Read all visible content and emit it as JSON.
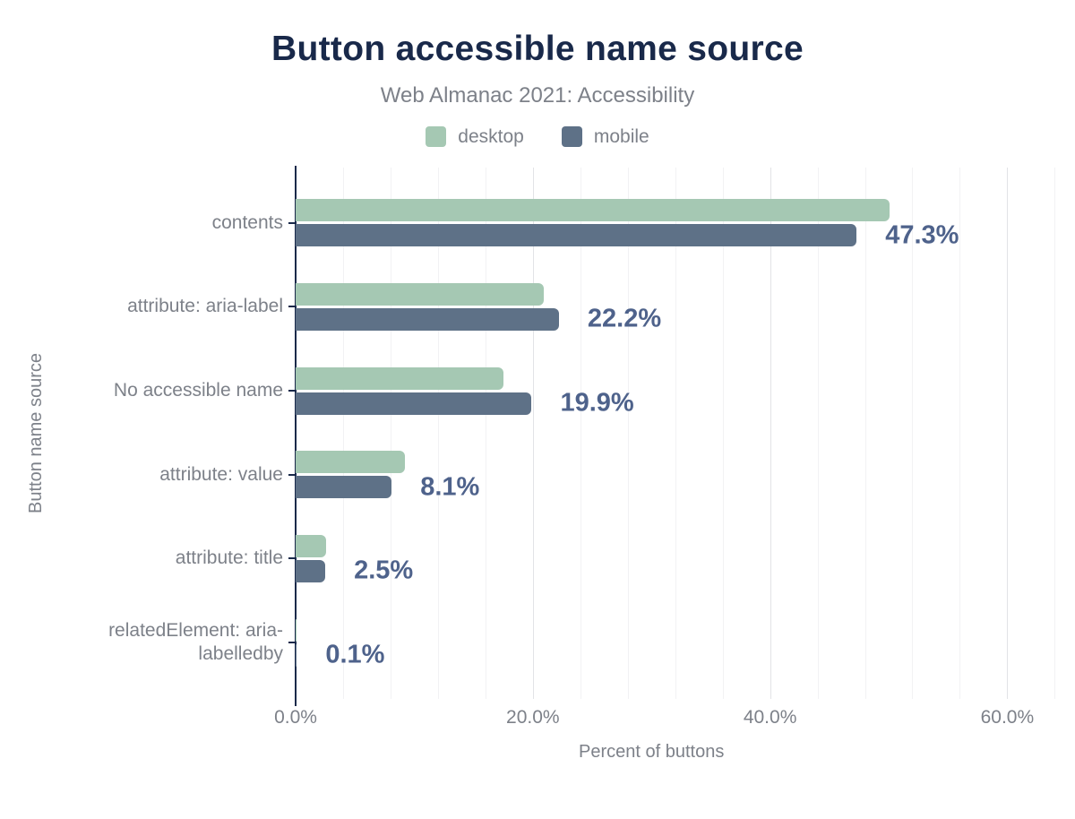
{
  "header": {
    "title": "Button accessible name source",
    "subtitle": "Web Almanac 2021: Accessibility"
  },
  "chart_data": {
    "type": "bar",
    "orientation": "horizontal",
    "title": "Button accessible name source",
    "subtitle": "Web Almanac 2021: Accessibility",
    "xlabel": "Percent of buttons",
    "ylabel": "Button name source",
    "categories": [
      "contents",
      "attribute: aria-label",
      "No accessible name",
      "attribute: value",
      "attribute: title",
      "relatedElement: aria-labelledby"
    ],
    "series": [
      {
        "name": "desktop",
        "color": "#a5c8b3",
        "values": [
          50.1,
          20.9,
          17.5,
          9.2,
          2.6,
          0.1
        ]
      },
      {
        "name": "mobile",
        "color": "#5e7187",
        "values": [
          47.3,
          22.2,
          19.9,
          8.1,
          2.5,
          0.1
        ]
      }
    ],
    "value_labels": [
      "47.3%",
      "22.2%",
      "19.9%",
      "8.1%",
      "2.5%",
      "0.1%"
    ],
    "value_label_series": "mobile",
    "x_ticks": [
      {
        "value": 0,
        "label": "0.0%"
      },
      {
        "value": 20,
        "label": "20.0%"
      },
      {
        "value": 40,
        "label": "40.0%"
      },
      {
        "value": 60,
        "label": "60.0%"
      }
    ],
    "xlim": [
      0,
      64.2
    ],
    "gridlines": {
      "step": 4,
      "max": 64,
      "major_step": 20,
      "minor_color": "#f2f2f4",
      "major_color": "#e2e3e6"
    },
    "legend_position": "top",
    "colors": {
      "title": "#19294a",
      "axis_line": "#19294a",
      "value_label": "#4e628b",
      "muted_text": "#7d8189",
      "background": "#ffffff"
    }
  }
}
